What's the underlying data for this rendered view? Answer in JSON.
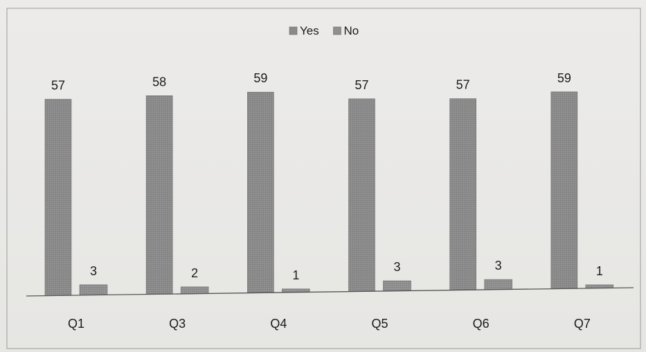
{
  "chart_data": {
    "type": "bar",
    "categories": [
      "Q1",
      "Q3",
      "Q4",
      "Q5",
      "Q6",
      "Q7"
    ],
    "series": [
      {
        "name": "Yes",
        "values": [
          57,
          58,
          59,
          57,
          57,
          59
        ],
        "color": "#8a8a8a"
      },
      {
        "name": "No",
        "values": [
          3,
          2,
          1,
          3,
          3,
          1
        ],
        "color": "#8f8f8f"
      }
    ],
    "title": "",
    "xlabel": "",
    "ylabel": "",
    "ylim": [
      0,
      65
    ],
    "grid": false,
    "legend_position": "top-center",
    "data_labels": true
  }
}
